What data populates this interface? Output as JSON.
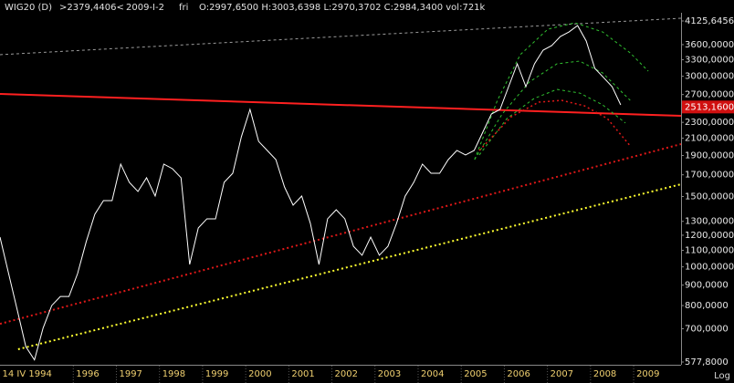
{
  "header": {
    "symbol": "WIG20 (D)",
    "cursor": ">2379,4406<",
    "date": "2009-I-2",
    "weekday": "fri",
    "ohlc": "O:2997,6500 H:3003,6398 L:2970,3702 C:2984,3400 vol:721k"
  },
  "chart_data": {
    "type": "line",
    "log_scale": true,
    "scale_label": "Log",
    "xlim": [
      1994.3,
      2010.1
    ],
    "xticks": [
      {
        "value": 1994.29,
        "label": "14 IV 1994"
      },
      1996,
      1997,
      1998,
      1999,
      2000,
      2001,
      2002,
      2003,
      2004,
      2005,
      2006,
      2007,
      2008,
      2009
    ],
    "ylim": [
      577.8,
      4125.6456
    ],
    "yticks": [
      {
        "value": 577.8,
        "label": "577,8000"
      },
      {
        "value": 700,
        "label": "700,0000"
      },
      {
        "value": 800,
        "label": "800,0000"
      },
      {
        "value": 900,
        "label": "900,0000"
      },
      {
        "value": 1000,
        "label": "1000,0000"
      },
      {
        "value": 1100,
        "label": "1100,0000"
      },
      {
        "value": 1200,
        "label": "1200,0000"
      },
      {
        "value": 1300,
        "label": "1300,0000"
      },
      {
        "value": 1500,
        "label": "1500,0000"
      },
      {
        "value": 1700,
        "label": "1700,0000"
      },
      {
        "value": 1900,
        "label": "1900,0000"
      },
      {
        "value": 2100,
        "label": "2100,0000"
      },
      {
        "value": 2300,
        "label": "2300,0000"
      },
      {
        "value": 2700,
        "label": "2700,0000"
      },
      {
        "value": 3000,
        "label": "3000,0000"
      },
      {
        "value": 3300,
        "label": "3300,0000"
      },
      {
        "value": 3600,
        "label": "3600,0000"
      },
      {
        "value": 4125.6456,
        "label": "4125,6456"
      }
    ],
    "price_marker": {
      "value": 2513.16,
      "label": "2513,1600",
      "color": "#d01010"
    },
    "series": [
      {
        "color": "#9a9a9a",
        "style": "dashed",
        "width": 1,
        "x": [
          1994.3,
          2010.1
        ],
        "values": [
          3397,
          4191
        ]
      },
      {
        "color": "#ff2020",
        "style": "solid",
        "width": 2,
        "x": [
          1994.3,
          2010.1
        ],
        "values": [
          2709,
          2388
        ]
      },
      {
        "color": "#e01818",
        "style": "dotted",
        "width": 2,
        "x": [
          1994.3,
          2010.1
        ],
        "values": [
          720,
          2029
        ]
      },
      {
        "color": "#ffff30",
        "style": "dotted",
        "width": 2,
        "x": [
          1994.72,
          2010.1
        ],
        "values": [
          622,
          1610
        ]
      },
      {
        "color": "#30c030",
        "style": "dashed",
        "width": 1,
        "x": [
          2005.31,
          2005.84,
          2006.37,
          2007.01,
          2007.64,
          2008.28,
          2008.92,
          2009.34
        ],
        "values": [
          1856,
          2611,
          3397,
          3935,
          4082,
          3873,
          3432,
          3090
        ]
      },
      {
        "color": "#30c030",
        "style": "dashed",
        "width": 1,
        "x": [
          2005.31,
          2005.95,
          2006.58,
          2007.22,
          2007.75,
          2008.28,
          2008.92
        ],
        "values": [
          1856,
          2413,
          2902,
          3223,
          3274,
          3058,
          2611
        ]
      },
      {
        "color": "#30c030",
        "style": "dashed",
        "width": 1,
        "x": [
          2005.42,
          2006.06,
          2006.69,
          2007.22,
          2007.75,
          2008.28,
          2008.81
        ],
        "values": [
          1906,
          2351,
          2639,
          2781,
          2723,
          2544,
          2291
        ]
      },
      {
        "color": "#e01818",
        "style": "dotted",
        "width": 1.5,
        "x": [
          2005.42,
          2006.16,
          2006.8,
          2007.33,
          2007.86,
          2008.39,
          2008.92
        ],
        "values": [
          1956,
          2375,
          2584,
          2611,
          2530,
          2351,
          2008
        ]
      },
      {
        "color": "#ffffff",
        "style": "solid",
        "width": 1,
        "x": [
          1994.3,
          1994.5,
          1994.7,
          1994.9,
          1995.1,
          1995.3,
          1995.5,
          1995.7,
          1995.9,
          1996.1,
          1996.3,
          1996.5,
          1996.7,
          1996.9,
          1997.1,
          1997.3,
          1997.5,
          1997.7,
          1997.9,
          1998.1,
          1998.3,
          1998.5,
          1998.7,
          1998.9,
          1999.1,
          1999.3,
          1999.5,
          1999.7,
          1999.9,
          2000.1,
          2000.3,
          2000.5,
          2000.7,
          2000.9,
          2001.1,
          2001.3,
          2001.5,
          2001.7,
          2001.9,
          2002.1,
          2002.3,
          2002.5,
          2002.7,
          2002.9,
          2003.1,
          2003.3,
          2003.5,
          2003.7,
          2003.9,
          2004.1,
          2004.3,
          2004.5,
          2004.7,
          2004.9,
          2005.1,
          2005.3,
          2005.5,
          2005.7,
          2005.9,
          2006.1,
          2006.3,
          2006.5,
          2006.7,
          2006.9,
          2007.1,
          2007.3,
          2007.5,
          2007.7,
          2007.9,
          2008.1,
          2008.3,
          2008.5,
          2008.7
        ],
        "values": [
          1187,
          962,
          780,
          631,
          585,
          703,
          800,
          843,
          843,
          962,
          1156,
          1354,
          1465,
          1465,
          1808,
          1628,
          1544,
          1671,
          1504,
          1808,
          1761,
          1671,
          1014,
          1251,
          1319,
          1319,
          1628,
          1715,
          2117,
          2478,
          2061,
          1956,
          1856,
          1585,
          1427,
          1504,
          1285,
          1014,
          1319,
          1390,
          1319,
          1126,
          1069,
          1187,
          1069,
          1126,
          1285,
          1504,
          1628,
          1808,
          1715,
          1715,
          1856,
          1956,
          1906,
          1956,
          2173,
          2413,
          2478,
          2826,
          3223,
          2826,
          3223,
          3487,
          3580,
          3773,
          3873,
          4019,
          3675,
          3139,
          2979,
          2826,
          2544
        ]
      }
    ]
  }
}
